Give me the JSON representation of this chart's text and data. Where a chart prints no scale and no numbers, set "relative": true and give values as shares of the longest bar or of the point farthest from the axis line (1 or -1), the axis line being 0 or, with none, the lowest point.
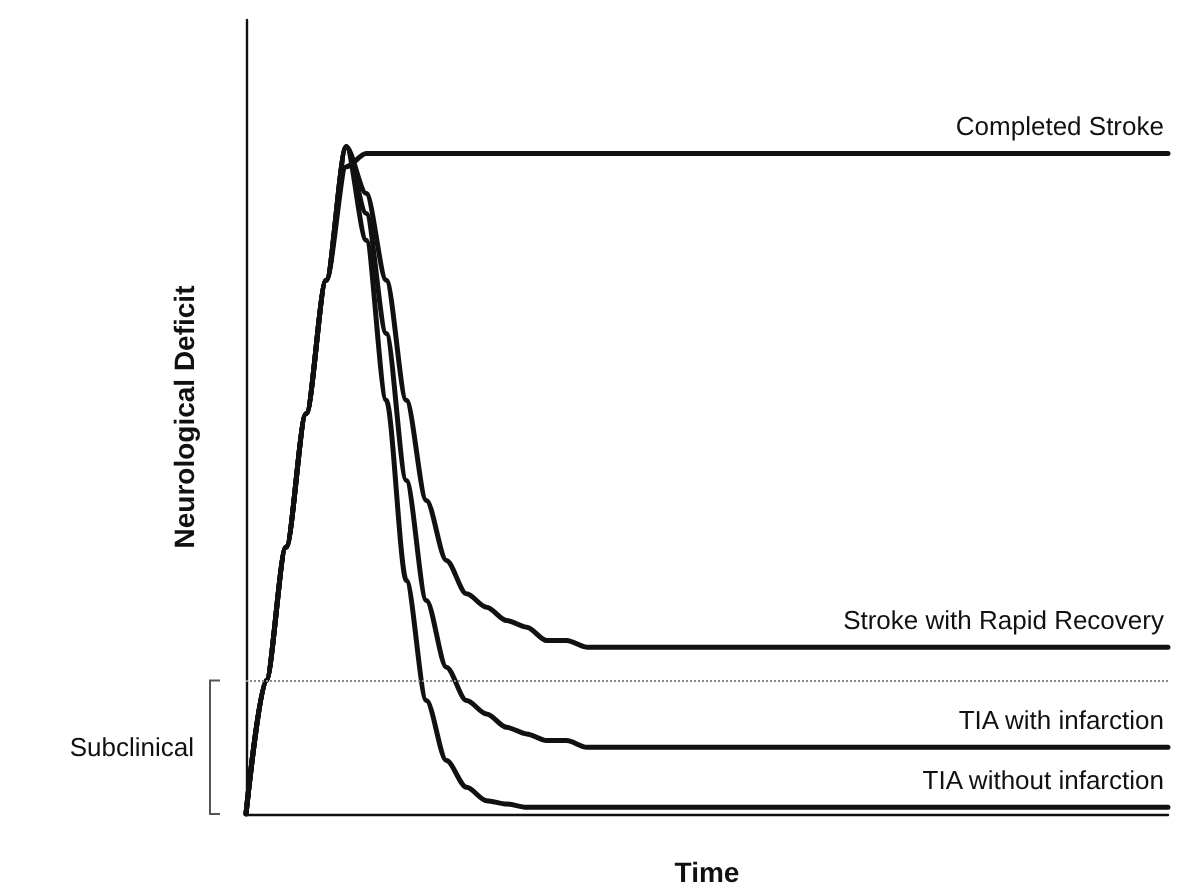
{
  "chart_data": {
    "type": "line",
    "relative": true,
    "xlabel": "Time",
    "ylabel": "Neurological Deficit",
    "categories": [
      null,
      null,
      null,
      null,
      null,
      null,
      null,
      null,
      null,
      null,
      null,
      null,
      null,
      null,
      null,
      null,
      null,
      null,
      null,
      null,
      null,
      null,
      null,
      null,
      null,
      null,
      null,
      null,
      null,
      null,
      null,
      null,
      null,
      null,
      null,
      null,
      null,
      null,
      null,
      null,
      null,
      null,
      null,
      null,
      null,
      null,
      null
    ],
    "series": [
      {
        "name": "Completed Stroke",
        "color": "#111111",
        "values": [
          0,
          0.2,
          0.4,
          0.6,
          0.8,
          0.97,
          0.99,
          0.99,
          0.99,
          0.99,
          0.99,
          0.99,
          0.99,
          0.99,
          0.99,
          0.99,
          0.99,
          0.99,
          0.99,
          0.99,
          0.99,
          0.99,
          0.99,
          0.99,
          0.99,
          0.99,
          0.99,
          0.99,
          0.99,
          0.99,
          0.99,
          0.99,
          0.99,
          0.99,
          0.99,
          0.99,
          0.99,
          0.99,
          0.99,
          0.99,
          0.99,
          0.99,
          0.99,
          0.99,
          0.99,
          0.99,
          0.99
        ]
      },
      {
        "name": "Stroke with Rapid Recovery",
        "color": "#111111",
        "values": [
          0,
          0.2,
          0.4,
          0.6,
          0.8,
          1,
          0.93,
          0.8,
          0.62,
          0.47,
          0.38,
          0.33,
          0.31,
          0.29,
          0.28,
          0.26,
          0.26,
          0.25,
          0.25,
          0.25,
          0.25,
          0.25,
          0.25,
          0.25,
          0.25,
          0.25,
          0.25,
          0.25,
          0.25,
          0.25,
          0.25,
          0.25,
          0.25,
          0.25,
          0.25,
          0.25,
          0.25,
          0.25,
          0.25,
          0.25,
          0.25,
          0.25,
          0.25,
          0.25,
          0.25,
          0.25,
          0.25
        ]
      },
      {
        "name": "TIA with infarction",
        "color": "#111111",
        "values": [
          0,
          0.2,
          0.4,
          0.6,
          0.8,
          1,
          0.9,
          0.72,
          0.5,
          0.32,
          0.22,
          0.17,
          0.15,
          0.13,
          0.12,
          0.11,
          0.11,
          0.1,
          0.1,
          0.1,
          0.1,
          0.1,
          0.1,
          0.1,
          0.1,
          0.1,
          0.1,
          0.1,
          0.1,
          0.1,
          0.1,
          0.1,
          0.1,
          0.1,
          0.1,
          0.1,
          0.1,
          0.1,
          0.1,
          0.1,
          0.1,
          0.1,
          0.1,
          0.1,
          0.1,
          0.1,
          0.1
        ]
      },
      {
        "name": "TIA without infarction",
        "color": "#111111",
        "values": [
          0,
          0.2,
          0.4,
          0.6,
          0.8,
          1,
          0.86,
          0.62,
          0.35,
          0.17,
          0.08,
          0.04,
          0.02,
          0.015,
          0.01,
          0.01,
          0.01,
          0.01,
          0.01,
          0.01,
          0.01,
          0.01,
          0.01,
          0.01,
          0.01,
          0.01,
          0.01,
          0.01,
          0.01,
          0.01,
          0.01,
          0.01,
          0.01,
          0.01,
          0.01,
          0.01,
          0.01,
          0.01,
          0.01,
          0.01,
          0.01,
          0.01,
          0.01,
          0.01,
          0.01,
          0.01,
          0.01
        ]
      }
    ],
    "ref_lines": [
      {
        "axis": "y",
        "value": 0.2,
        "line_style": "dotted",
        "color": "#888888"
      }
    ],
    "annotations": [
      "Subclinical"
    ],
    "grid": false,
    "legend": false,
    "marker": "none",
    "line_style": "solid"
  }
}
